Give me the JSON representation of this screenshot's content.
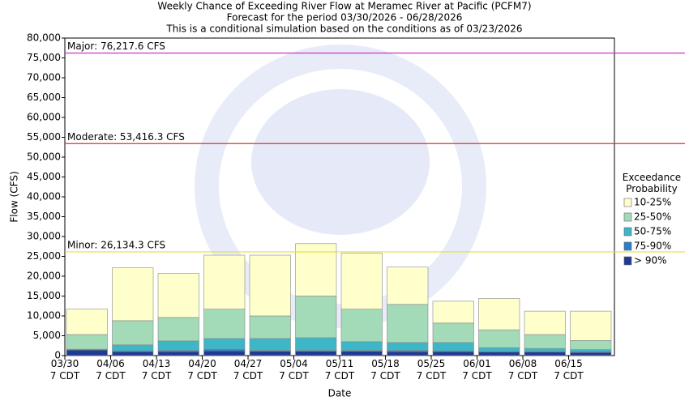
{
  "chart_data": {
    "type": "stacked-bar",
    "title": "Weekly Chance of Exceeding River Flow at Meramec River at Pacific (PCFM7)",
    "subtitle": "Forecast for the period 03/30/2026 - 06/28/2026",
    "note": "This is a conditional simulation based on the conditions as of 03/23/2026",
    "y_label": "Flow (CFS)",
    "x_label": "Date",
    "legend_title": "Exceedance Probability",
    "categories": [
      "03/30 7 CDT",
      "04/06 7 CDT",
      "04/13 7 CDT",
      "04/20 7 CDT",
      "04/27 7 CDT",
      "05/04 7 CDT",
      "05/11 7 CDT",
      "05/18 7 CDT",
      "05/25 7 CDT",
      "06/01 7 CDT",
      "06/08 7 CDT",
      "06/15 7 CDT"
    ],
    "series": [
      {
        "name": "> 90%",
        "color": "#1f3a93",
        "values": [
          1400,
          1000,
          1000,
          1200,
          1100,
          1100,
          1100,
          1000,
          1000,
          900,
          900,
          800
        ]
      },
      {
        "name": "75-90%",
        "color": "#2a7fc8",
        "values": [
          100,
          200,
          300,
          400,
          200,
          200,
          200,
          300,
          200,
          200,
          200,
          200
        ]
      },
      {
        "name": "50-75%",
        "color": "#3db6c8",
        "values": [
          100,
          1500,
          2400,
          2700,
          3000,
          3200,
          2200,
          2000,
          2100,
          900,
          700,
          500
        ]
      },
      {
        "name": "25-50%",
        "color": "#a3dbb8",
        "values": [
          3700,
          6100,
          5900,
          7400,
          5700,
          10500,
          8200,
          9600,
          4900,
          4500,
          3500,
          2300
        ]
      },
      {
        "name": "10-25%",
        "color": "#ffffcc",
        "values": [
          6400,
          13300,
          11100,
          13600,
          15300,
          13200,
          14100,
          9400,
          5500,
          7900,
          5900,
          7400
        ]
      }
    ],
    "thresholds": [
      {
        "label": "Major: 76,217.6 CFS",
        "value": 76217.6,
        "color": "#cc33cc"
      },
      {
        "label": "Moderate: 53,416.3 CFS",
        "value": 53416.3,
        "color": "#dd3333"
      },
      {
        "label": "Minor: 26,134.3 CFS",
        "value": 26134.3,
        "color": "#e8e030"
      }
    ],
    "ylim": [
      0,
      80000
    ],
    "yticks": [
      0,
      {
        "value": 5000,
        "label": "5,000"
      },
      {
        "value": 10000,
        "label": "10,000"
      },
      {
        "value": 15000,
        "label": "15,000"
      },
      {
        "value": 20000,
        "label": "20,000"
      },
      {
        "value": 25000,
        "label": "25,000"
      },
      {
        "value": 30000,
        "label": "30,000"
      },
      {
        "value": 35000,
        "label": "35,000"
      },
      {
        "value": 40000,
        "label": "40,000"
      },
      {
        "value": 45000,
        "label": "45,000"
      },
      {
        "value": 50000,
        "label": "50,000"
      },
      {
        "value": 55000,
        "label": "55,000"
      },
      {
        "value": 60000,
        "label": "60,000"
      },
      {
        "value": 65000,
        "label": "65,000"
      },
      {
        "value": 70000,
        "label": "70,000"
      },
      {
        "value": 75000,
        "label": "75,000"
      },
      {
        "value": 80000,
        "label": "80,000"
      }
    ]
  }
}
